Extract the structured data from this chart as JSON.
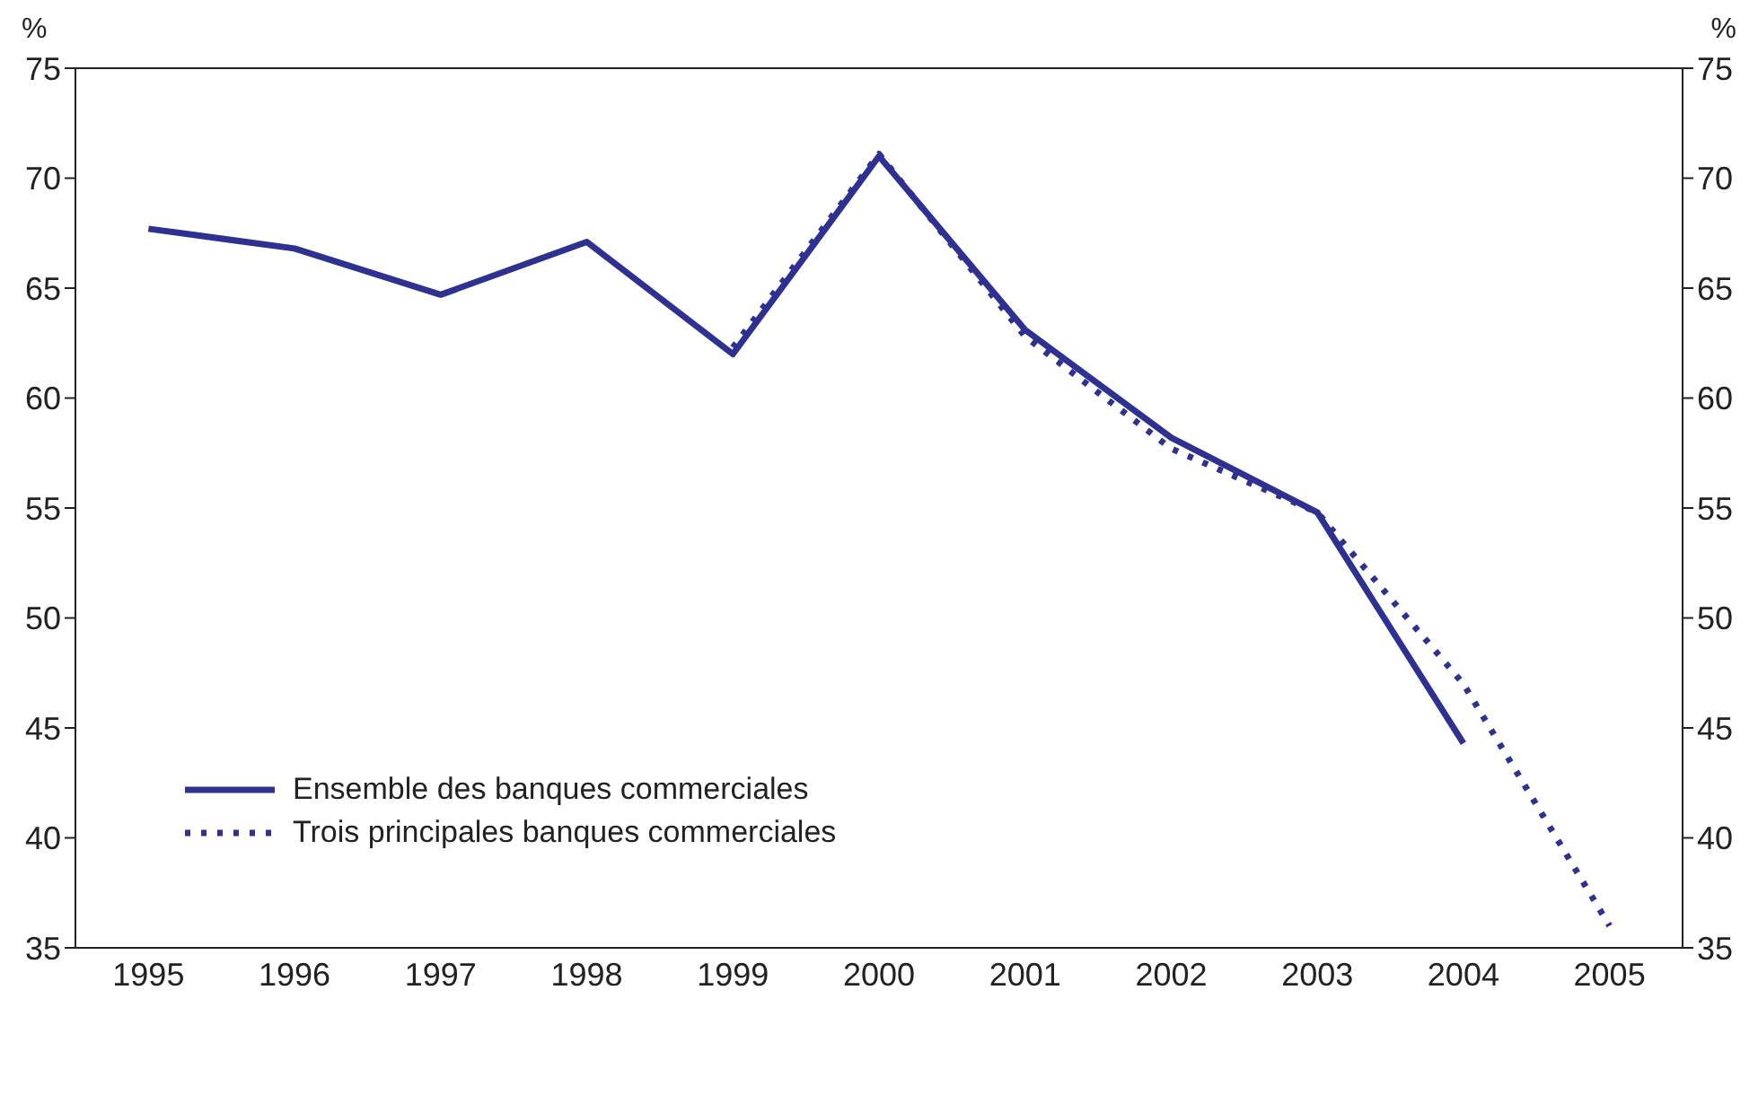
{
  "chart_data": {
    "type": "line",
    "ylabel": "%",
    "y2label": "%",
    "categories": [
      "1995",
      "1996",
      "1997",
      "1998",
      "1999",
      "2000",
      "2001",
      "2002",
      "2003",
      "2004",
      "2005"
    ],
    "series": [
      {
        "name": "Ensemble des banques commerciales",
        "color": "#2e3192",
        "line_style": "solid",
        "values": [
          67.7,
          66.8,
          64.7,
          67.1,
          62,
          71,
          63.1,
          58.2,
          54.8,
          44.3,
          null
        ]
      },
      {
        "name": "Trois principales banques commerciales",
        "color": "#2e3192",
        "line_style": "dotted",
        "values": [
          null,
          null,
          null,
          null,
          62.3,
          71.1,
          62.8,
          57.7,
          54.8,
          47,
          36
        ]
      }
    ],
    "ylim": [
      35,
      75
    ],
    "yticks": [
      35,
      40,
      45,
      50,
      55,
      60,
      65,
      70,
      75
    ],
    "y2lim": [
      35,
      75
    ],
    "y2ticks": [
      35,
      40,
      45,
      50,
      55,
      60,
      65,
      70,
      75
    ],
    "legend": "left",
    "marker": "none"
  }
}
